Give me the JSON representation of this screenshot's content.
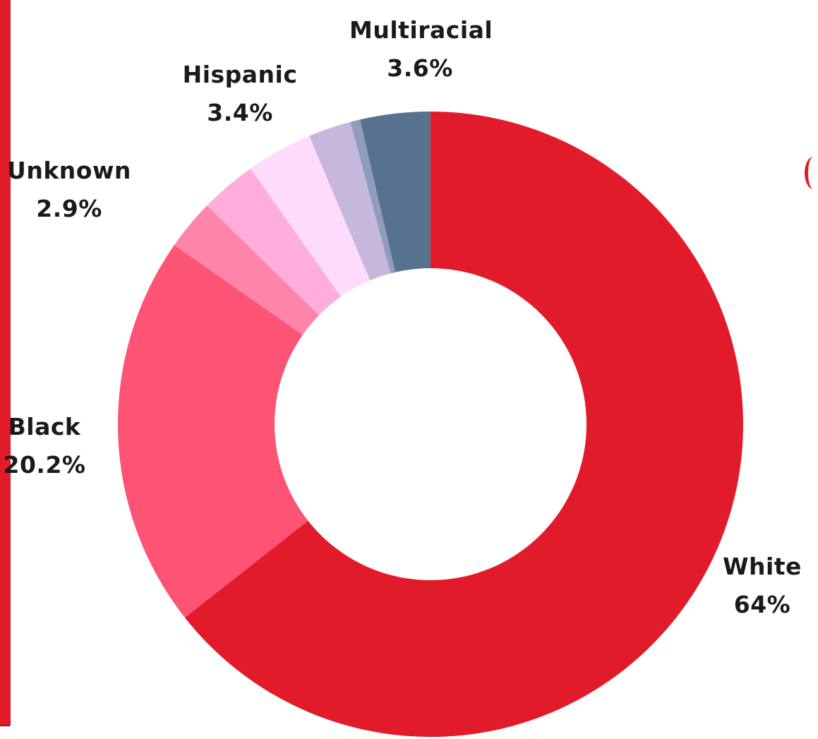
{
  "chart_data": {
    "type": "pie",
    "title": "",
    "slices": [
      {
        "name": "White",
        "value": 64.0,
        "label_value": "64%",
        "color": "#e21b2a"
      },
      {
        "name": "Black",
        "value": 20.2,
        "label_value": "20.2%",
        "color": "#fd5374"
      },
      {
        "name": "",
        "value": 2.6,
        "label_value": "",
        "color": "#ff84a9"
      },
      {
        "name": "Unknown",
        "value": 2.9,
        "label_value": "2.9%",
        "color": "#ffaedb"
      },
      {
        "name": "Hispanic",
        "value": 3.4,
        "label_value": "3.4%",
        "color": "#ffdbfb"
      },
      {
        "name": "",
        "value": 2.2,
        "label_value": "",
        "color": "#c5b8dc"
      },
      {
        "name": "",
        "value": 0.5,
        "label_value": "",
        "color": "#8e9dbb"
      },
      {
        "name": "Multiracial",
        "value": 3.6,
        "label_value": "3.6%",
        "color": "#56728f"
      }
    ],
    "start": "12 o'clock",
    "direction": "clockwise",
    "donut": true
  }
}
